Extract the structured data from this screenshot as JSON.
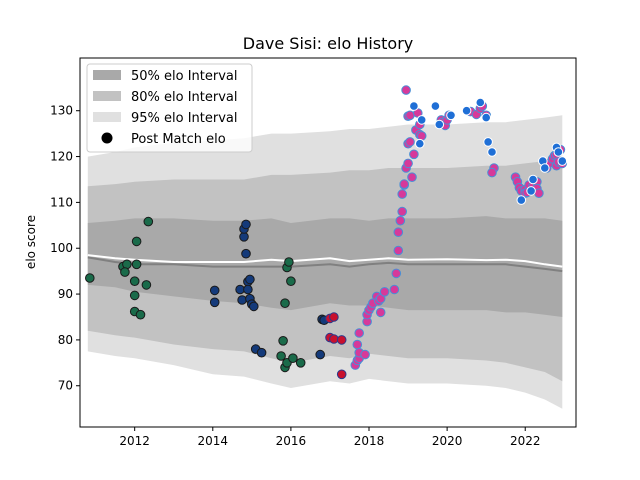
{
  "chart_data": {
    "type": "scatter",
    "title": "Dave Sisi: elo History",
    "xlabel": "",
    "ylabel": "elo score",
    "xlim": [
      2010.6,
      2023.3
    ],
    "ylim": [
      61,
      141.5
    ],
    "x_ticks": [
      2012,
      2014,
      2016,
      2018,
      2020,
      2022
    ],
    "y_ticks": [
      70,
      80,
      90,
      100,
      110,
      120,
      130
    ],
    "legend_position": "upper-left",
    "legend": [
      "50% elo Interval",
      "80% elo Interval",
      "95% elo Interval",
      "Post Match elo"
    ],
    "colors": {
      "band50": "#a9a9a9",
      "band80": "#c2c2c2",
      "band95": "#e0e0e0",
      "mean_line": "#ffffff",
      "median_line": "#808080",
      "marker_edge": "#1a1a1a"
    },
    "bands": {
      "x": [
        2010.8,
        2011.5,
        2012.0,
        2013.0,
        2014.0,
        2014.8,
        2015.5,
        2016.0,
        2017.0,
        2017.5,
        2018.0,
        2018.5,
        2019.0,
        2020.0,
        2021.0,
        2021.5,
        2022.0,
        2022.5,
        2022.95
      ],
      "p95_low": [
        77.5,
        76.5,
        76,
        74.5,
        72.5,
        72,
        70.5,
        69.5,
        71,
        70.5,
        71.5,
        71,
        70.5,
        70.5,
        70,
        69.5,
        68.5,
        67,
        65
      ],
      "p80_low": [
        82,
        81,
        80.5,
        79,
        78,
        77.5,
        76,
        75,
        76.5,
        76,
        77,
        76.5,
        76,
        76,
        75.5,
        75,
        74,
        73,
        71
      ],
      "p50_low": [
        92,
        91.5,
        90.5,
        89.5,
        88.5,
        88,
        87,
        86.5,
        88,
        87.5,
        87.5,
        87,
        86.5,
        86.5,
        86.5,
        86,
        86,
        85.5,
        85
      ],
      "p50_high": [
        105.5,
        106,
        106.5,
        106.5,
        106,
        106,
        106.5,
        105.5,
        106.5,
        106.5,
        106,
        106.5,
        106.5,
        106.5,
        107,
        106.5,
        106.5,
        106.5,
        106
      ],
      "p80_high": [
        113.5,
        114,
        114.5,
        115,
        115,
        115,
        116,
        116,
        116.5,
        117,
        117,
        117.5,
        117.5,
        117.5,
        118,
        118,
        118.5,
        119,
        119
      ],
      "p95_high": [
        120,
        121,
        122,
        123,
        123.5,
        124,
        125,
        125,
        125.5,
        126,
        126,
        126.5,
        127,
        127,
        127.5,
        127.5,
        128,
        128.5,
        129
      ],
      "mean": [
        98.5,
        97.8,
        97.5,
        97,
        97,
        97,
        97.5,
        97.2,
        97.8,
        97.2,
        97.5,
        97.8,
        97.5,
        97.6,
        97.4,
        97.5,
        97.2,
        96.5,
        96
      ],
      "median": [
        98,
        97,
        96.5,
        96.5,
        96,
        96,
        96,
        96,
        96.5,
        96,
        96.5,
        96.8,
        96.5,
        96.5,
        96.5,
        96.5,
        96,
        95.5,
        95
      ]
    },
    "series": [
      {
        "color": "#1a6b4a",
        "points": [
          [
            2010.85,
            93.5
          ],
          [
            2011.7,
            96
          ],
          [
            2011.8,
            96.5
          ],
          [
            2011.75,
            94.8
          ],
          [
            2012.0,
            92.8
          ],
          [
            2012.05,
            96.5
          ],
          [
            2012.05,
            101.5
          ],
          [
            2012.0,
            89.7
          ],
          [
            2012.0,
            86.2
          ],
          [
            2012.15,
            85.5
          ],
          [
            2012.3,
            92
          ],
          [
            2012.35,
            105.8
          ],
          [
            2015.8,
            79.8
          ],
          [
            2015.75,
            76.5
          ],
          [
            2015.85,
            74
          ],
          [
            2015.9,
            75
          ],
          [
            2016.05,
            76
          ],
          [
            2016.25,
            75
          ],
          [
            2015.9,
            95.8
          ],
          [
            2015.95,
            97
          ],
          [
            2016.0,
            92.8
          ],
          [
            2015.85,
            88
          ]
        ]
      },
      {
        "color": "#143a7a",
        "points": [
          [
            2014.05,
            90.8
          ],
          [
            2014.05,
            88.2
          ],
          [
            2014.7,
            91
          ],
          [
            2014.75,
            88.7
          ],
          [
            2014.8,
            102.5
          ],
          [
            2014.8,
            104.2
          ],
          [
            2014.85,
            105.2
          ],
          [
            2014.85,
            98.8
          ],
          [
            2014.9,
            92.7
          ],
          [
            2014.95,
            93.2
          ],
          [
            2014.9,
            91
          ],
          [
            2014.95,
            89
          ],
          [
            2015.0,
            87.8
          ],
          [
            2015.05,
            87.3
          ],
          [
            2015.1,
            78
          ],
          [
            2015.25,
            77.2
          ],
          [
            2016.75,
            76.8
          ],
          [
            2016.8,
            84.5
          ],
          [
            2016.85,
            84.3
          ]
        ]
      },
      {
        "color": "#c8102e",
        "edge": "#2b3a8c",
        "points": [
          [
            2017.0,
            84.7
          ],
          [
            2017.1,
            85
          ],
          [
            2017.0,
            80.5
          ],
          [
            2017.1,
            80.2
          ],
          [
            2017.3,
            80
          ],
          [
            2017.3,
            72.5
          ]
        ]
      },
      {
        "color": "#d6399a",
        "edge": "#4a8fd6",
        "points": [
          [
            2017.65,
            74.5
          ],
          [
            2017.7,
            75.5
          ],
          [
            2017.75,
            76
          ],
          [
            2017.75,
            77.2
          ],
          [
            2017.7,
            79
          ],
          [
            2017.75,
            81.5
          ],
          [
            2017.9,
            76.8
          ],
          [
            2017.95,
            84
          ],
          [
            2017.95,
            85.5
          ],
          [
            2018.0,
            86.5
          ],
          [
            2018.05,
            87.2
          ],
          [
            2018.1,
            88
          ],
          [
            2018.2,
            89.5
          ],
          [
            2018.25,
            88.5
          ],
          [
            2018.3,
            86
          ],
          [
            2018.3,
            89
          ],
          [
            2018.4,
            90.5
          ],
          [
            2018.65,
            91
          ],
          [
            2018.7,
            94.5
          ],
          [
            2018.75,
            99.5
          ],
          [
            2018.75,
            103.5
          ],
          [
            2018.8,
            106
          ],
          [
            2018.85,
            108
          ],
          [
            2018.85,
            111.8
          ],
          [
            2018.9,
            113.8
          ],
          [
            2018.9,
            114
          ],
          [
            2018.95,
            117.5
          ],
          [
            2019.0,
            118.5
          ],
          [
            2019.0,
            122.8
          ],
          [
            2019.05,
            123.2
          ],
          [
            2019.1,
            115.5
          ],
          [
            2019.15,
            120.5
          ],
          [
            2019.0,
            128.8
          ],
          [
            2018.95,
            134.5
          ],
          [
            2019.05,
            129
          ],
          [
            2019.2,
            125.8
          ],
          [
            2019.3,
            127
          ],
          [
            2019.25,
            129.5
          ],
          [
            2019.3,
            124.8
          ],
          [
            2019.35,
            124.5
          ],
          [
            2019.85,
            128
          ],
          [
            2019.9,
            127.5
          ],
          [
            2019.95,
            126.8
          ],
          [
            2020.0,
            128
          ],
          [
            2020.05,
            129
          ],
          [
            2020.6,
            129.8
          ],
          [
            2020.75,
            129.2
          ],
          [
            2020.85,
            130.5
          ],
          [
            2020.9,
            131
          ],
          [
            2021.0,
            129
          ],
          [
            2021.2,
            117.5
          ],
          [
            2021.15,
            116.5
          ],
          [
            2021.75,
            115.5
          ],
          [
            2021.8,
            114.5
          ],
          [
            2021.85,
            113.2
          ],
          [
            2021.9,
            112.5
          ],
          [
            2022.0,
            112.8
          ],
          [
            2022.0,
            112
          ],
          [
            2022.05,
            112.2
          ],
          [
            2022.1,
            113.8
          ],
          [
            2022.2,
            113.5
          ],
          [
            2022.3,
            114.5
          ],
          [
            2022.3,
            113
          ],
          [
            2022.35,
            112
          ],
          [
            2022.55,
            117.5
          ],
          [
            2022.6,
            118.5
          ],
          [
            2022.7,
            119.5
          ],
          [
            2022.75,
            120.2
          ],
          [
            2022.8,
            118
          ],
          [
            2022.8,
            120.5
          ],
          [
            2022.85,
            118.8
          ],
          [
            2022.9,
            121.5
          ],
          [
            2022.95,
            118.5
          ]
        ]
      },
      {
        "color": "#1f6fd6",
        "edge": "#ffffff",
        "points": [
          [
            2019.15,
            131
          ],
          [
            2019.3,
            122.8
          ],
          [
            2019.35,
            128
          ],
          [
            2019.7,
            131
          ],
          [
            2019.8,
            127
          ],
          [
            2020.1,
            129
          ],
          [
            2020.5,
            130
          ],
          [
            2020.85,
            131.8
          ],
          [
            2021.0,
            128.5
          ],
          [
            2021.05,
            123.2
          ],
          [
            2021.15,
            121
          ],
          [
            2021.9,
            110.5
          ],
          [
            2022.15,
            112.5
          ],
          [
            2022.2,
            115
          ],
          [
            2022.45,
            119
          ],
          [
            2022.5,
            117.5
          ],
          [
            2022.8,
            122
          ],
          [
            2022.85,
            121
          ],
          [
            2022.95,
            119
          ]
        ]
      }
    ]
  }
}
